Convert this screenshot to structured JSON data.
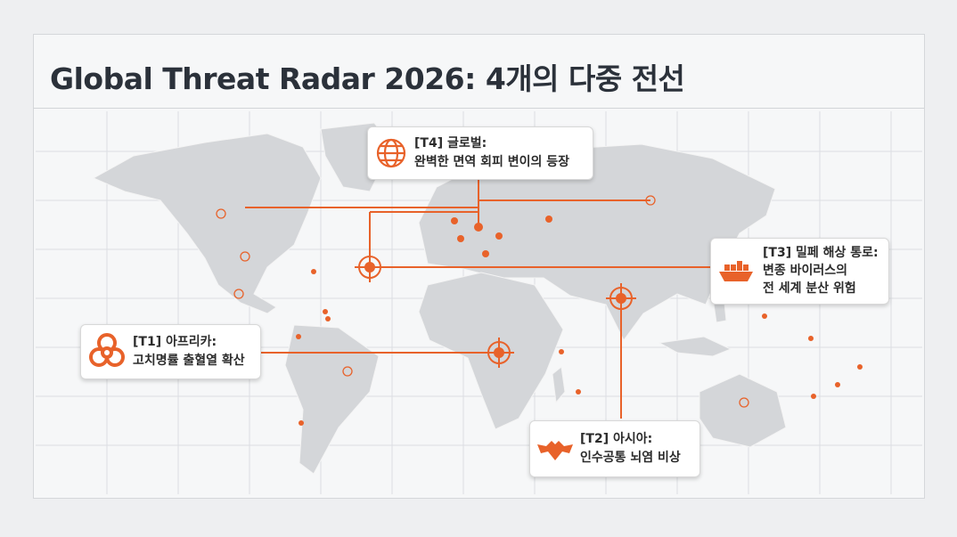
{
  "header": {
    "title": "Global Threat Radar 2026: 4개의 다중 전선"
  },
  "callouts": [
    {
      "label": "[T4] 글로벌:",
      "text": "완벽한 면역 회피 변이의 등장"
    },
    {
      "label": "[T3] 밀페 해상 통로:",
      "text": "변종 바이러스의",
      "text2": "전 세계 분산 위험"
    },
    {
      "label": "[T1] 아프리카:",
      "text": "고치명률 출혈열 확산"
    },
    {
      "label": "[T2] 아시아:",
      "text": "인수공통 뇌염 비상"
    }
  ]
}
